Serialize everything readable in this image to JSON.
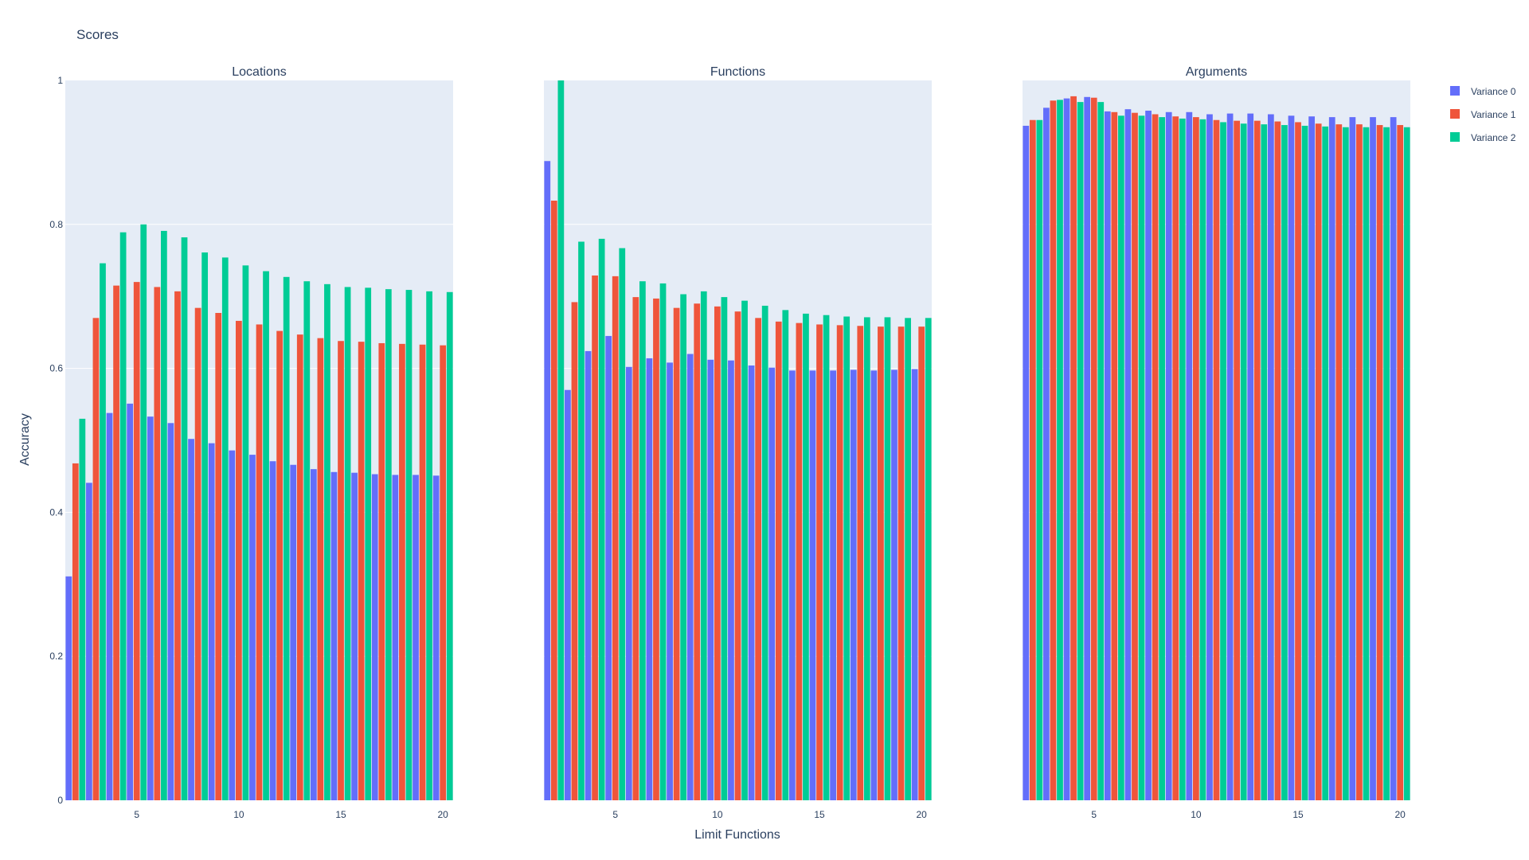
{
  "chart_data": {
    "type": "bar",
    "title": "Scores",
    "xlabel": "Limit Functions",
    "ylabel": "Accuracy",
    "ylim": [
      0,
      1
    ],
    "y_ticks": [
      0,
      0.2,
      0.4,
      0.6,
      0.8,
      1
    ],
    "y_tick_labels": [
      "0",
      "0.2",
      "0.4",
      "0.6",
      "0.8",
      "1"
    ],
    "x_ticks": [
      5,
      10,
      15,
      20
    ],
    "x_tick_labels": [
      "5",
      "10",
      "15",
      "20"
    ],
    "grid": true,
    "legend_position": "top-right",
    "colors": [
      "#636efa",
      "#ef553b",
      "#00cc96"
    ],
    "x": [
      2,
      3,
      4,
      5,
      6,
      7,
      8,
      9,
      10,
      11,
      12,
      13,
      14,
      15,
      16,
      17,
      18,
      19,
      20
    ],
    "subplots": [
      {
        "title": "Locations",
        "series": [
          {
            "name": "Variance 0",
            "values": [
              0.311,
              0.441,
              0.538,
              0.551,
              0.533,
              0.524,
              0.502,
              0.496,
              0.486,
              0.48,
              0.471,
              0.466,
              0.46,
              0.456,
              0.455,
              0.453,
              0.452,
              0.452,
              0.451
            ]
          },
          {
            "name": "Variance 1",
            "values": [
              0.468,
              0.67,
              0.715,
              0.72,
              0.713,
              0.707,
              0.684,
              0.677,
              0.666,
              0.661,
              0.652,
              0.647,
              0.642,
              0.638,
              0.637,
              0.635,
              0.634,
              0.633,
              0.632
            ]
          },
          {
            "name": "Variance 2",
            "values": [
              0.53,
              0.746,
              0.789,
              0.8,
              0.791,
              0.782,
              0.761,
              0.754,
              0.743,
              0.735,
              0.727,
              0.721,
              0.717,
              0.713,
              0.712,
              0.71,
              0.709,
              0.707,
              0.706
            ]
          }
        ]
      },
      {
        "title": "Functions",
        "series": [
          {
            "name": "Variance 0",
            "values": [
              0.888,
              0.57,
              0.624,
              0.645,
              0.602,
              0.614,
              0.608,
              0.62,
              0.612,
              0.611,
              0.604,
              0.601,
              0.597,
              0.597,
              0.597,
              0.598,
              0.597,
              0.598,
              0.599
            ]
          },
          {
            "name": "Variance 1",
            "values": [
              0.833,
              0.692,
              0.729,
              0.728,
              0.699,
              0.697,
              0.684,
              0.69,
              0.686,
              0.679,
              0.67,
              0.665,
              0.663,
              0.661,
              0.66,
              0.659,
              0.658,
              0.658,
              0.658
            ]
          },
          {
            "name": "Variance 2",
            "values": [
              1.0,
              0.776,
              0.78,
              0.767,
              0.721,
              0.718,
              0.703,
              0.707,
              0.699,
              0.694,
              0.687,
              0.681,
              0.676,
              0.674,
              0.672,
              0.671,
              0.671,
              0.67,
              0.67
            ]
          }
        ]
      },
      {
        "title": "Arguments",
        "series": [
          {
            "name": "Variance 0",
            "values": [
              0.937,
              0.962,
              0.975,
              0.977,
              0.957,
              0.96,
              0.958,
              0.956,
              0.956,
              0.953,
              0.954,
              0.954,
              0.953,
              0.951,
              0.95,
              0.949,
              0.949,
              0.949,
              0.949
            ]
          },
          {
            "name": "Variance 1",
            "values": [
              0.945,
              0.972,
              0.978,
              0.976,
              0.956,
              0.955,
              0.953,
              0.95,
              0.949,
              0.945,
              0.944,
              0.944,
              0.943,
              0.942,
              0.94,
              0.939,
              0.939,
              0.938,
              0.938
            ]
          },
          {
            "name": "Variance 2",
            "values": [
              0.945,
              0.973,
              0.97,
              0.97,
              0.951,
              0.951,
              0.949,
              0.947,
              0.946,
              0.942,
              0.94,
              0.939,
              0.938,
              0.937,
              0.936,
              0.935,
              0.935,
              0.935,
              0.935
            ]
          }
        ]
      }
    ]
  }
}
